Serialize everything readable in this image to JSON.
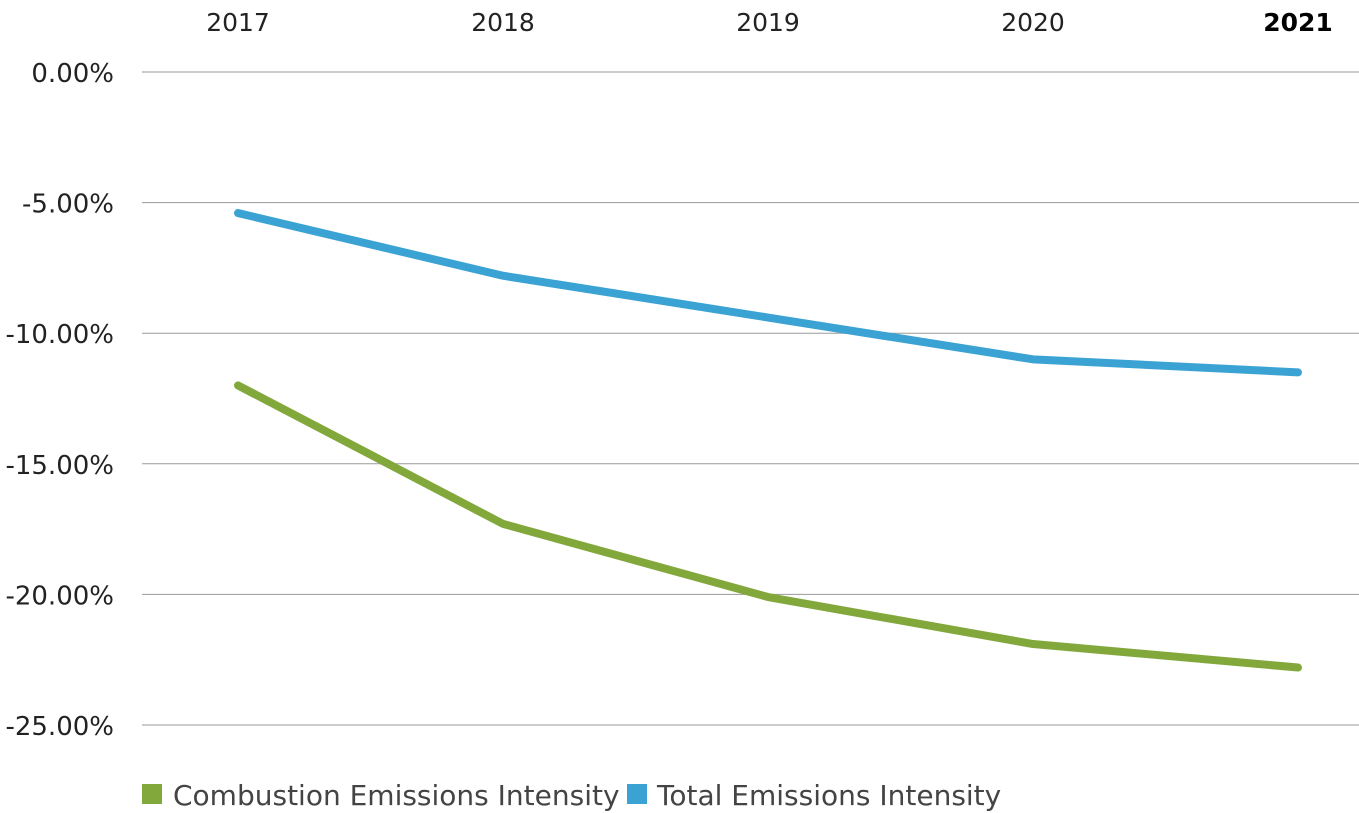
{
  "chart_data": {
    "type": "line",
    "title": "",
    "xlabel": "",
    "ylabel": "",
    "categories": [
      "2017",
      "2018",
      "2019",
      "2020",
      "2021"
    ],
    "highlighted_category": "2021",
    "y_tick_labels": [
      "0.00%",
      "-5.00%",
      "-10.00%",
      "-15.00%",
      "-20.00%",
      "-25.00%"
    ],
    "y_ticks": [
      0,
      -5,
      -10,
      -15,
      -20,
      -25
    ],
    "ylim": [
      -25,
      0
    ],
    "grid": true,
    "legend_position": "bottom-left",
    "series": [
      {
        "name": "Combustion Emissions Intensity",
        "color": "#82a83c",
        "values": [
          -12.0,
          -17.3,
          -20.1,
          -21.9,
          -22.8
        ]
      },
      {
        "name": "Total Emissions Intensity",
        "color": "#3aa3d3",
        "values": [
          -5.4,
          -7.8,
          -9.4,
          -11.0,
          -11.5
        ]
      }
    ]
  }
}
